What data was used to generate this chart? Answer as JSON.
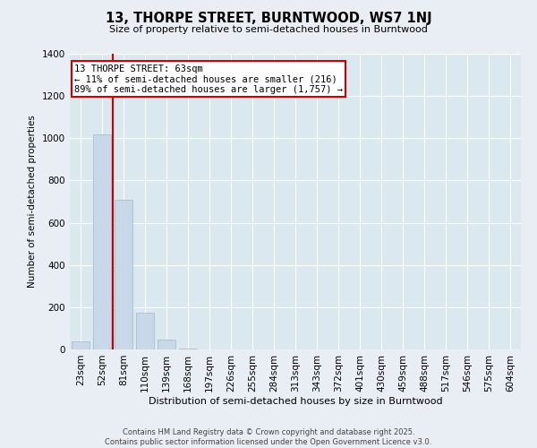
{
  "title": "13, THORPE STREET, BURNTWOOD, WS7 1NJ",
  "subtitle": "Size of property relative to semi-detached houses in Burntwood",
  "xlabel": "Distribution of semi-detached houses by size in Burntwood",
  "ylabel": "Number of semi-detached properties",
  "categories": [
    "23sqm",
    "52sqm",
    "81sqm",
    "110sqm",
    "139sqm",
    "168sqm",
    "197sqm",
    "226sqm",
    "255sqm",
    "284sqm",
    "313sqm",
    "343sqm",
    "372sqm",
    "401sqm",
    "430sqm",
    "459sqm",
    "488sqm",
    "517sqm",
    "546sqm",
    "575sqm",
    "604sqm"
  ],
  "values": [
    40,
    1020,
    710,
    175,
    45,
    5,
    0,
    0,
    0,
    0,
    0,
    0,
    0,
    0,
    0,
    0,
    0,
    0,
    0,
    0,
    0
  ],
  "bar_color": "#c8d8e8",
  "bar_edge_color": "#a0b8cc",
  "annotation_text": "13 THORPE STREET: 63sqm\n← 11% of semi-detached houses are smaller (216)\n89% of semi-detached houses are larger (1,757) →",
  "annotation_box_color": "#ffffff",
  "annotation_box_edge_color": "#cc0000",
  "prop_line_color": "#cc0000",
  "ymax": 1400,
  "yticks": [
    0,
    200,
    400,
    600,
    800,
    1000,
    1200,
    1400
  ],
  "bg_color": "#e8eef4",
  "plot_bg_color": "#dce8f0",
  "footer_line1": "Contains HM Land Registry data © Crown copyright and database right 2025.",
  "footer_line2": "Contains public sector information licensed under the Open Government Licence v3.0."
}
